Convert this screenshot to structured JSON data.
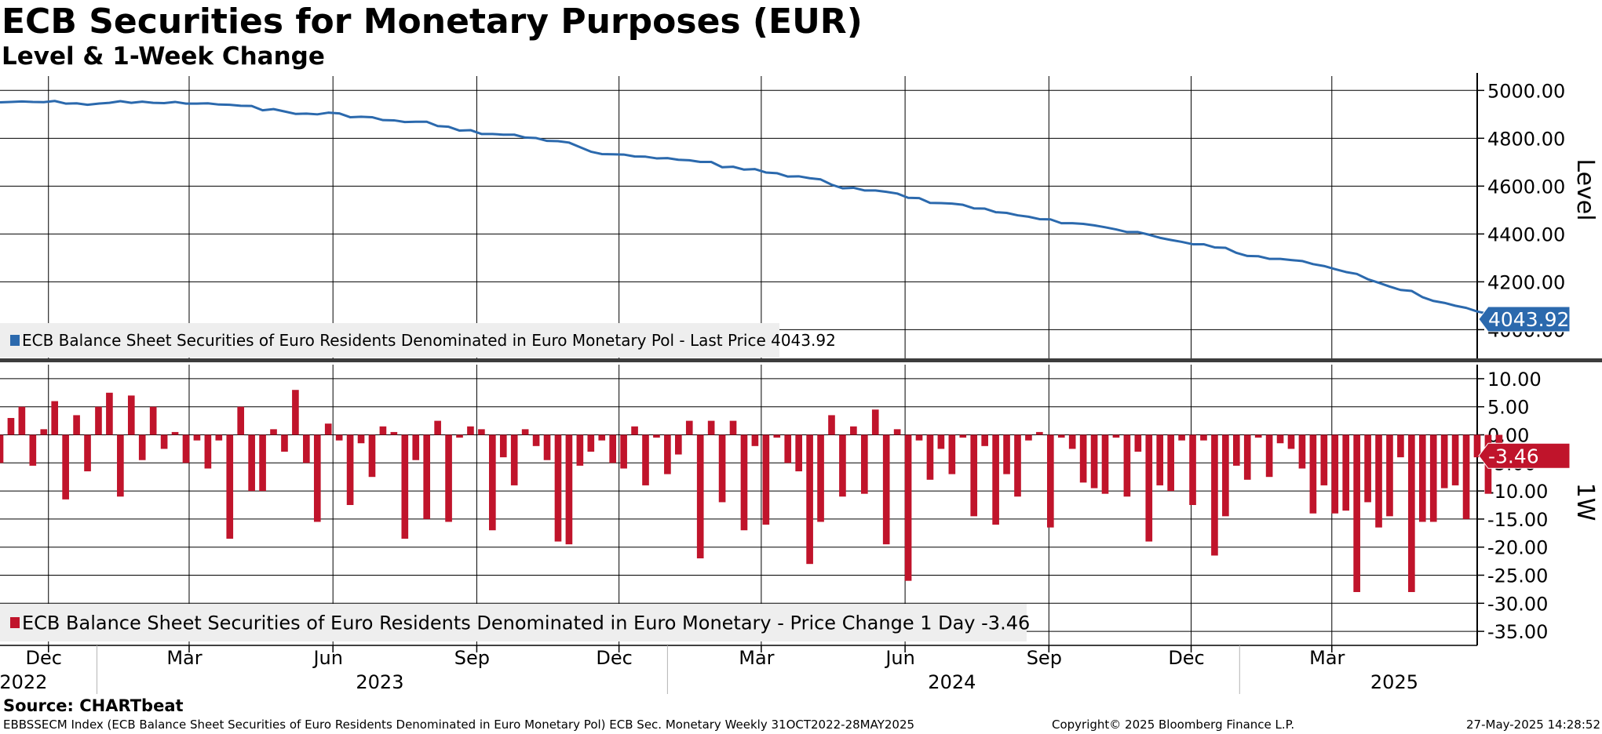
{
  "header": {
    "title": "ECB Securities for Monetary Purposes (EUR)",
    "subtitle": "Level & 1-Week Change"
  },
  "footer": {
    "source": "Source: CHARTbeat",
    "index_info": "EBBSSECM Index (ECB Balance Sheet Securities of Euro Residents Denominated in Euro Monetary Pol) ECB Sec. Monetary  Weekly 31OCT2022-28MAY2025",
    "copyright": "Copyright© 2025 Bloomberg Finance L.P.",
    "timestamp": "27-May-2025 14:28:52"
  },
  "colors": {
    "line": "#2b69ad",
    "bar": "#c0142b",
    "grid": "#000000"
  },
  "chart_data": [
    {
      "type": "line",
      "name": "level",
      "ylabel": "Level",
      "ylim": [
        3880,
        5060
      ],
      "yticks": [
        "5000.00",
        "4800.00",
        "4600.00",
        "4400.00",
        "4200.00",
        "4000.00"
      ],
      "last_value_label": "4043.92",
      "legend": "ECB Balance Sheet Securities of Euro Residents Denominated in Euro Monetary Pol - Last Price 4043.92",
      "x_start": "2022-10-31",
      "x_step_weeks": 1,
      "values": [
        4950.0,
        4952.0,
        4954.0,
        4952.0,
        4951.0,
        4956.0,
        4945.0,
        4946.0,
        4940.0,
        4945.0,
        4948.0,
        4955.0,
        4948.0,
        4953.0,
        4948.0,
        4947.0,
        4952.0,
        4945.0,
        4945.0,
        4946.0,
        4941.0,
        4940.0,
        4936.0,
        4935.0,
        4917.0,
        4922.0,
        4912.0,
        4902.0,
        4903.0,
        4900.0,
        4907.0,
        4904.0,
        4888.0,
        4890.0,
        4888.0,
        4876.0,
        4875.0,
        4868.0,
        4869.0,
        4869.0,
        4851.0,
        4848.0,
        4832.0,
        4834.0,
        4818.0,
        4818.0,
        4815.0,
        4815.0,
        4803.0,
        4801.0,
        4789.0,
        4788.0,
        4782.0,
        4763.0,
        4744.0,
        4734.0,
        4733.0,
        4732.0,
        4724.0,
        4723.0,
        4716.0,
        4717.0,
        4710.0,
        4708.0,
        4701.0,
        4701.0,
        4679.0,
        4681.0,
        4669.0,
        4671.0,
        4657.0,
        4654.0,
        4640.0,
        4641.0,
        4633.0,
        4628.0,
        4606.0,
        4591.0,
        4593.0,
        4582.0,
        4582.0,
        4576.0,
        4569.0,
        4551.0,
        4550.0,
        4530.0,
        4529.0,
        4527.0,
        4522.0,
        4507.0,
        4506.0,
        4491.0,
        4488.0,
        4478.0,
        4472.0,
        4462.0,
        4461.0,
        4445.0,
        4445.0,
        4442.0,
        4436.0,
        4428.0,
        4419.0,
        4408.0,
        4408.0,
        4397.0,
        4384.0,
        4375.0,
        4367.0,
        4357.0,
        4357.0,
        4344.0,
        4342.0,
        4321.0,
        4308.0,
        4307.0,
        4296.0,
        4296.0,
        4291.0,
        4287.0,
        4274.0,
        4266.0,
        4253.0,
        4241.0,
        4233.0,
        4211.0,
        4196.0,
        4180.0,
        4166.0,
        4162.0,
        4136.0,
        4120.0,
        4112.0,
        4100.0,
        4091.0,
        4076.0,
        4066.0,
        4056.0,
        4049.0,
        4043.92
      ]
    },
    {
      "type": "bar",
      "name": "1W",
      "ylabel": "1W",
      "ylim": [
        -37.5,
        12.5
      ],
      "yticks": [
        "10.00",
        "5.00",
        "0.00",
        "-5.00",
        "-10.00",
        "-15.00",
        "-20.00",
        "-25.00",
        "-30.00",
        "-35.00"
      ],
      "last_value_label": "-3.46",
      "legend": "ECB Balance Sheet Securities of Euro Residents Denominated in Euro Monetary - Price Change 1 Day -3.46",
      "values": [
        -5.0,
        3.0,
        5.0,
        -5.5,
        1.0,
        6.0,
        -11.5,
        3.5,
        -6.5,
        5.0,
        7.5,
        -11.0,
        7.0,
        -4.5,
        5.0,
        -2.5,
        0.5,
        -5.0,
        -1.0,
        -6.0,
        -1.0,
        -18.5,
        5.0,
        -10.0,
        -10.0,
        1.0,
        -3.0,
        8.0,
        -5.0,
        -15.5,
        2.0,
        -1.0,
        -12.5,
        -1.5,
        -7.5,
        1.5,
        0.5,
        -18.5,
        -4.5,
        -15.0,
        2.5,
        -15.5,
        -0.5,
        1.5,
        1.0,
        -17.0,
        -4.0,
        -9.0,
        1.0,
        -2.0,
        -4.5,
        -19.0,
        -19.5,
        -5.5,
        -3.0,
        -1.0,
        -5.0,
        -6.0,
        1.5,
        -9.0,
        -0.5,
        -7.0,
        -3.5,
        2.5,
        -22.0,
        2.5,
        -12.0,
        2.5,
        -17.0,
        -2.0,
        -16.0,
        -0.5,
        -5.0,
        -6.5,
        -23.0,
        -15.5,
        3.5,
        -11.0,
        1.5,
        -10.5,
        4.5,
        -19.5,
        1.0,
        -26.0,
        -1.0,
        -8.0,
        -2.5,
        -7.0,
        -0.5,
        -14.5,
        -2.0,
        -16.0,
        -7.0,
        -11.0,
        -1.0,
        0.5,
        -16.5,
        -0.5,
        -2.5,
        -8.5,
        -9.5,
        -10.5,
        -0.5,
        -11.0,
        -3.0,
        -19.0,
        -9.0,
        -10.0,
        -1.0,
        -12.5,
        -1.0,
        -21.5,
        -14.5,
        -5.5,
        -8.0,
        -0.5,
        -7.5,
        -1.5,
        -2.5,
        -6.0,
        -14.0,
        -9.0,
        -14.0,
        -13.5,
        -28.0,
        -12.0,
        -16.5,
        -14.5,
        -4.0,
        -28.0,
        -15.5,
        -15.5,
        -9.5,
        -9.0,
        -15.0,
        -4.0,
        -10.5,
        -3.46
      ]
    }
  ],
  "x_axis": {
    "months": [
      {
        "label": "Dec",
        "date": "2022-12-01"
      },
      {
        "label": "Mar",
        "date": "2023-03-01"
      },
      {
        "label": "Jun",
        "date": "2023-06-01"
      },
      {
        "label": "Sep",
        "date": "2023-09-01"
      },
      {
        "label": "Dec",
        "date": "2023-12-01"
      },
      {
        "label": "Mar",
        "date": "2024-03-01"
      },
      {
        "label": "Jun",
        "date": "2024-06-01"
      },
      {
        "label": "Sep",
        "date": "2024-09-01"
      },
      {
        "label": "Dec",
        "date": "2024-12-01"
      },
      {
        "label": "Mar",
        "date": "2025-03-01"
      }
    ],
    "years": [
      {
        "label": "2022",
        "date": "2022-11-15"
      },
      {
        "label": "2023",
        "date": "2023-07-01"
      },
      {
        "label": "2024",
        "date": "2024-07-01"
      },
      {
        "label": "2025",
        "date": "2025-04-10"
      }
    ],
    "year_separators": [
      "2023-01-01",
      "2024-01-01",
      "2025-01-01"
    ]
  }
}
